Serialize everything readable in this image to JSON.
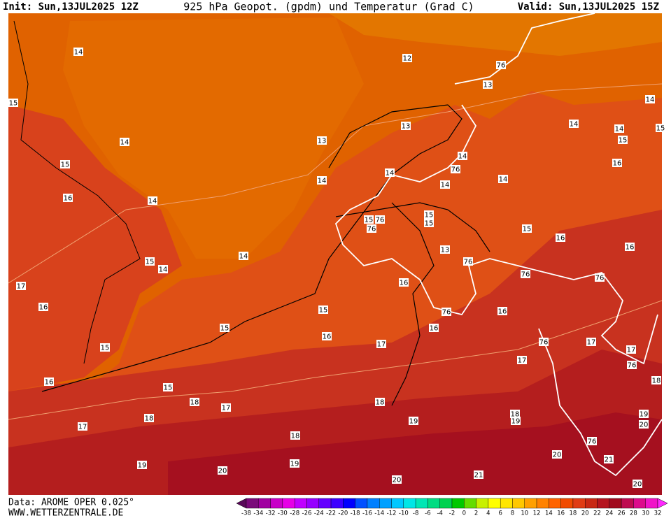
{
  "header": {
    "init": "Init: Sun,13JUL2025 12Z",
    "title": "925 hPa Geopot. (gpdm) und Temperatur (Grad C)",
    "valid": "Valid: Sun,13JUL2025 15Z"
  },
  "footer": {
    "data": "Data: AROME OPER 0.025°",
    "site": "WWW.WETTERZENTRALE.DE"
  },
  "colorbar": {
    "labels": [
      -38,
      -34,
      -32,
      -30,
      -28,
      -26,
      -24,
      -22,
      -20,
      -18,
      -16,
      -14,
      -12,
      -10,
      -8,
      -6,
      -4,
      -2,
      0,
      2,
      4,
      6,
      8,
      10,
      12,
      14,
      16,
      18,
      20,
      22,
      24,
      26,
      28,
      30,
      32
    ],
    "colors": [
      "#5a0a5a",
      "#7a0a7a",
      "#a000a0",
      "#c800c8",
      "#e600e6",
      "#c000ff",
      "#9600ff",
      "#6400ff",
      "#3c00ff",
      "#0000ff",
      "#0050ff",
      "#0080ff",
      "#00a0ff",
      "#00c8ff",
      "#00e6e6",
      "#00e6b4",
      "#00dc82",
      "#00d250",
      "#00c800",
      "#64dc00",
      "#c8f000",
      "#ffff00",
      "#ffe600",
      "#ffc800",
      "#ffa000",
      "#ff8200",
      "#ff6400",
      "#f04b00",
      "#e03c14",
      "#c82814",
      "#b4141e",
      "#a00a1e",
      "#be0a50",
      "#dc0a8c",
      "#f014c8",
      "#ff28ff"
    ]
  },
  "contour_labels": [
    "14",
    "12",
    "15",
    "14",
    "13",
    "15",
    "14",
    "16",
    "14",
    "14",
    "15",
    "14",
    "17",
    "16",
    "15",
    "15",
    "16",
    "15",
    "18",
    "17",
    "17",
    "18",
    "18",
    "19",
    "20",
    "19",
    "20",
    "21",
    "20",
    "21",
    "20",
    "19",
    "18",
    "17",
    "16",
    "15",
    "16",
    "16",
    "17",
    "16",
    "18",
    "19",
    "18",
    "19",
    "20",
    "17",
    "17",
    "76",
    "76",
    "76",
    "76",
    "76",
    "76",
    "16",
    "16",
    "15",
    "15",
    "15",
    "15",
    "76",
    "76",
    "13",
    "14",
    "14",
    "14",
    "76",
    "14",
    "13",
    "13",
    "76",
    "14",
    "14",
    "15",
    "16",
    "14",
    "15",
    "76"
  ]
}
